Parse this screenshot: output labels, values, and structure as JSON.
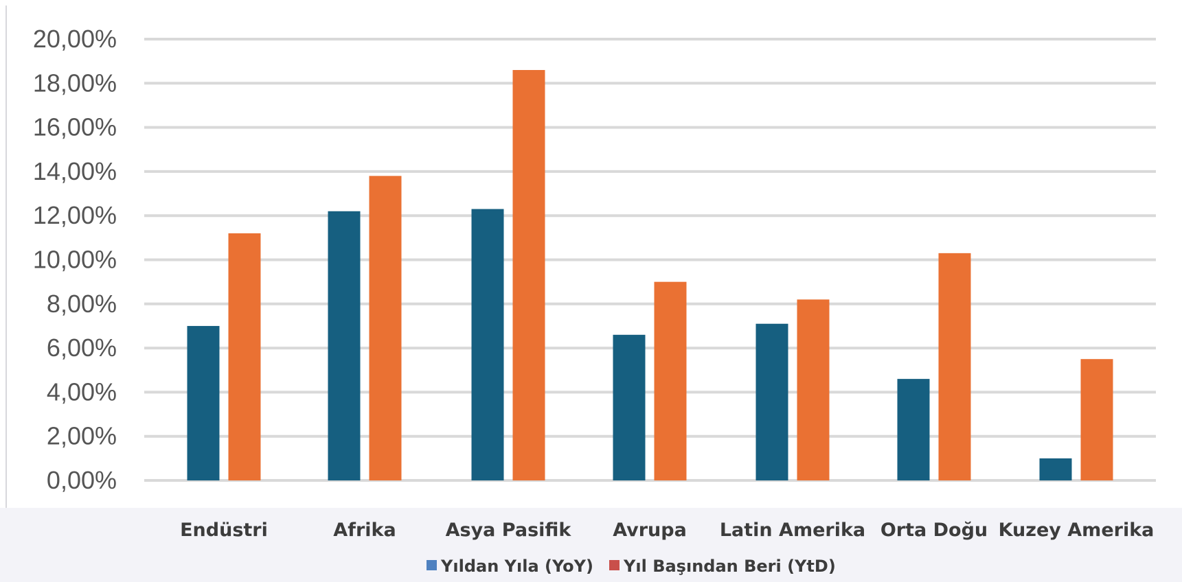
{
  "chart_data": {
    "type": "bar",
    "categories": [
      "Endüstri",
      "Afrika",
      "Asya Pasifik",
      "Avrupa",
      "Latin Amerika",
      "Orta Doğu",
      "Kuzey Amerika"
    ],
    "series": [
      {
        "name": "Yıldan Yıla (YoY)",
        "values": [
          7.0,
          12.2,
          12.3,
          6.6,
          7.1,
          4.6,
          1.0
        ],
        "color": "#165f80",
        "legend_color": "#4f81c0"
      },
      {
        "name": "Yıl Başından Beri (YtD)",
        "values": [
          11.2,
          13.8,
          18.6,
          9.0,
          8.2,
          10.3,
          5.5
        ],
        "color": "#ea7133",
        "legend_color": "#c94f4b"
      }
    ],
    "y_ticks": [
      "0,00%",
      "2,00%",
      "4,00%",
      "6,00%",
      "8,00%",
      "10,00%",
      "12,00%",
      "14,00%",
      "16,00%",
      "18,00%",
      "20,00%"
    ],
    "ylim": [
      0,
      20
    ],
    "grid": true,
    "gridline_color": "#d9d9d9",
    "legend_position": "bottom-center"
  }
}
